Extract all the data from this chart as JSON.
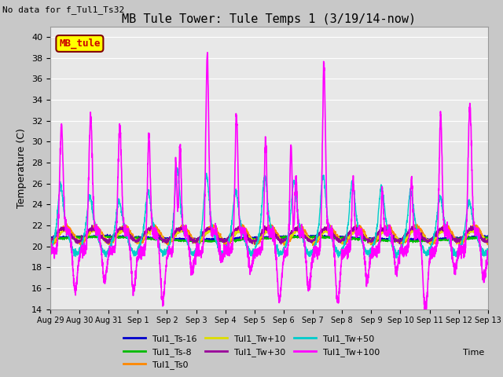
{
  "title": "MB Tule Tower: Tule Temps 1 (3/19/14-now)",
  "subtitle": "No data for f_Tul1_Ts32",
  "ylabel": "Temperature (C)",
  "xlabel": "Time",
  "ylim": [
    14,
    41
  ],
  "yticks": [
    14,
    16,
    18,
    20,
    22,
    24,
    26,
    28,
    30,
    32,
    34,
    36,
    38,
    40
  ],
  "x_start": 0,
  "x_end": 15,
  "legend_box_label": "MB_tule",
  "legend_box_color": "#ffff00",
  "legend_box_border": "#800000",
  "bg_color": "#e8e8e8",
  "grid_color": "#ffffff",
  "series": [
    {
      "label": "Tul1_Ts-16",
      "color": "#0000cc",
      "lw": 1.0
    },
    {
      "label": "Tul1_Ts-8",
      "color": "#00bb00",
      "lw": 1.0
    },
    {
      "label": "Tul1_Ts0",
      "color": "#ff8800",
      "lw": 1.0
    },
    {
      "label": "Tul1_Tw+10",
      "color": "#dddd00",
      "lw": 1.0
    },
    {
      "label": "Tul1_Tw+30",
      "color": "#990099",
      "lw": 1.0
    },
    {
      "label": "Tul1_Tw+50",
      "color": "#00cccc",
      "lw": 1.0
    },
    {
      "label": "Tul1_Tw+100",
      "color": "#ff00ff",
      "lw": 1.2
    }
  ],
  "xtick_labels": [
    "Aug 29",
    "Aug 30",
    "Aug 31",
    "Sep 1",
    "Sep 2",
    "Sep 3",
    "Sep 4",
    "Sep 5",
    "Sep 6",
    "Sep 7",
    "Sep 8",
    "Sep 9",
    "Sep 10",
    "Sep 11",
    "Sep 12",
    "Sep 13"
  ],
  "xtick_positions": [
    0,
    1,
    2,
    3,
    4,
    5,
    6,
    7,
    8,
    9,
    10,
    11,
    12,
    13,
    14,
    15
  ]
}
